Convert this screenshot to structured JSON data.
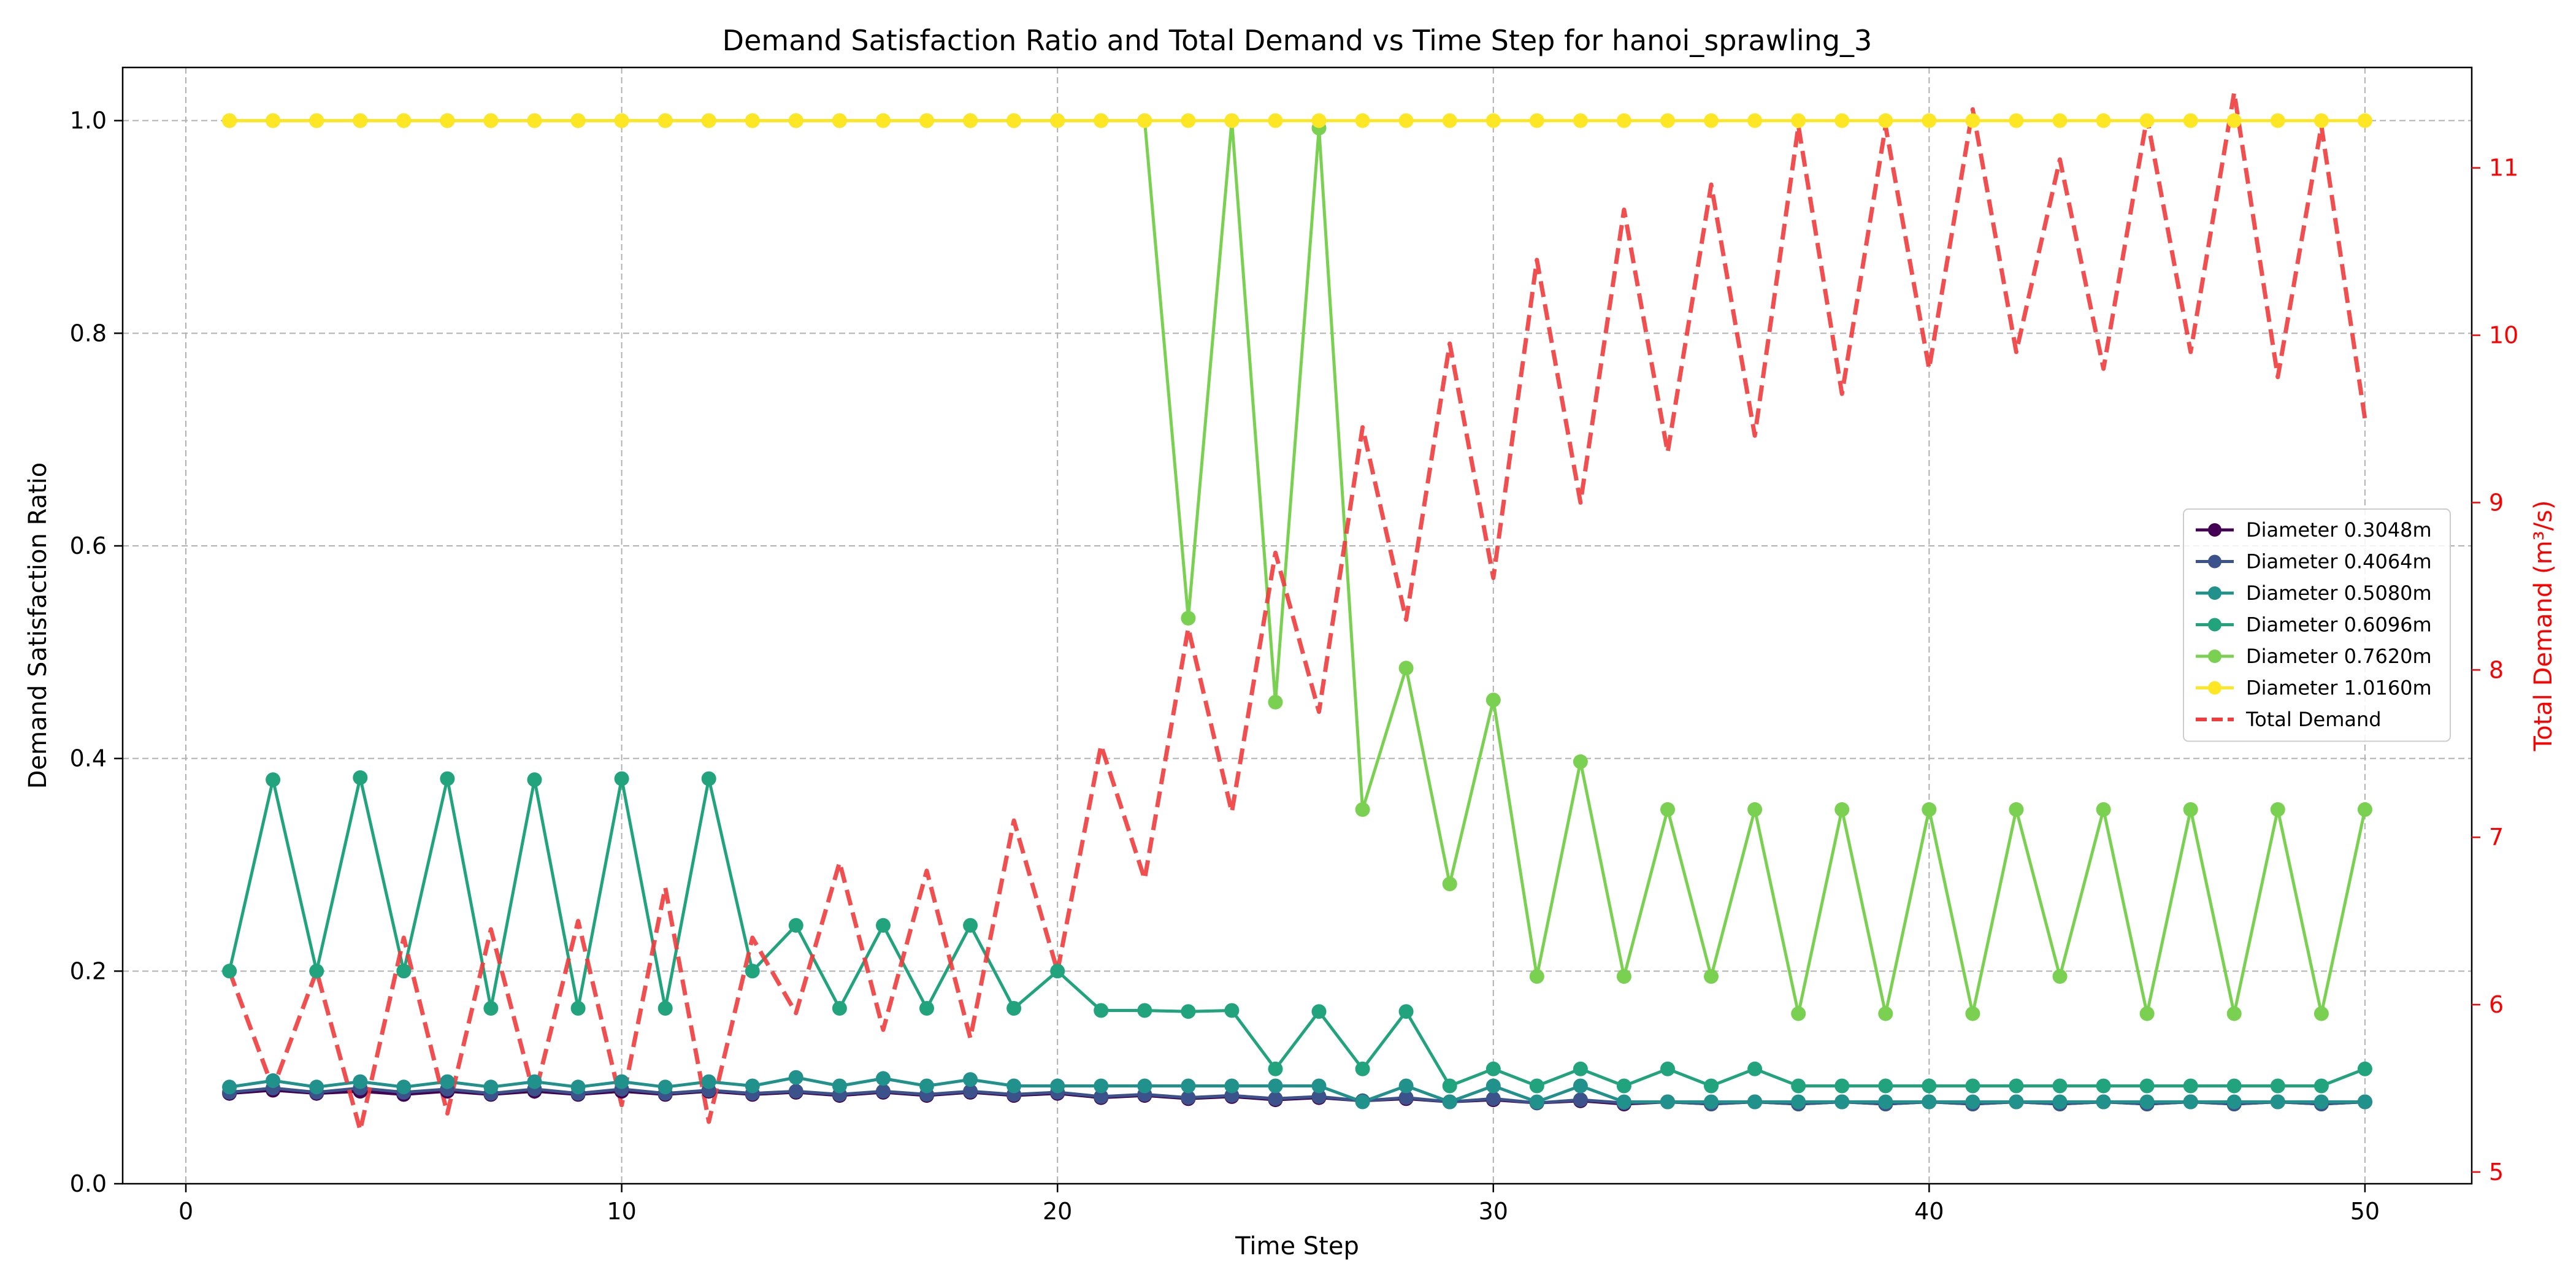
{
  "chart_data": {
    "type": "line",
    "title": "Demand Satisfaction Ratio and Total Demand vs Time Step for hanoi_sprawling_3",
    "xlabel": "Time Step",
    "ylabel": "Demand Satisfaction Ratio",
    "y2label": "Total Demand (m³/s)",
    "xlim": [
      -1.45,
      52.45
    ],
    "ylim": [
      0,
      1.05
    ],
    "y2lim": [
      4.93,
      11.6
    ],
    "xticks": [
      0,
      10,
      20,
      30,
      40,
      50
    ],
    "yticks": [
      0.0,
      0.2,
      0.4,
      0.6,
      0.8,
      1.0
    ],
    "y2ticks": [
      5,
      6,
      7,
      8,
      9,
      10,
      11
    ],
    "grid": true,
    "legend_position": "center-right",
    "x": [
      1,
      2,
      3,
      4,
      5,
      6,
      7,
      8,
      9,
      10,
      11,
      12,
      13,
      14,
      15,
      16,
      17,
      18,
      19,
      20,
      21,
      22,
      23,
      24,
      25,
      26,
      27,
      28,
      29,
      30,
      31,
      32,
      33,
      34,
      35,
      36,
      37,
      38,
      39,
      40,
      41,
      42,
      43,
      44,
      45,
      46,
      47,
      48,
      49,
      50
    ],
    "series": [
      {
        "name": "Diameter 0.3048m",
        "color": "#440154",
        "axis": "left",
        "values": [
          0.085,
          0.088,
          0.085,
          0.087,
          0.084,
          0.087,
          0.084,
          0.087,
          0.084,
          0.087,
          0.084,
          0.087,
          0.084,
          0.086,
          0.083,
          0.086,
          0.083,
          0.086,
          0.083,
          0.085,
          0.081,
          0.083,
          0.08,
          0.082,
          0.079,
          0.081,
          0.078,
          0.08,
          0.077,
          0.079,
          0.076,
          0.078,
          0.075,
          0.077,
          0.075,
          0.077,
          0.075,
          0.077,
          0.075,
          0.077,
          0.075,
          0.077,
          0.075,
          0.077,
          0.075,
          0.077,
          0.075,
          0.077,
          0.075,
          0.077
        ]
      },
      {
        "name": "Diameter 0.4064m",
        "color": "#3b528b",
        "axis": "left",
        "values": [
          0.086,
          0.09,
          0.086,
          0.09,
          0.086,
          0.089,
          0.085,
          0.089,
          0.085,
          0.089,
          0.085,
          0.088,
          0.085,
          0.087,
          0.084,
          0.087,
          0.084,
          0.087,
          0.084,
          0.086,
          0.082,
          0.084,
          0.081,
          0.083,
          0.08,
          0.082,
          0.078,
          0.081,
          0.077,
          0.08,
          0.076,
          0.079,
          0.076,
          0.077,
          0.075,
          0.077,
          0.075,
          0.077,
          0.075,
          0.077,
          0.075,
          0.077,
          0.075,
          0.077,
          0.075,
          0.077,
          0.075,
          0.077,
          0.075,
          0.077
        ]
      },
      {
        "name": "Diameter 0.5080m",
        "color": "#21918c",
        "axis": "left",
        "values": [
          0.091,
          0.097,
          0.091,
          0.096,
          0.091,
          0.096,
          0.091,
          0.096,
          0.091,
          0.096,
          0.091,
          0.096,
          0.092,
          0.1,
          0.092,
          0.099,
          0.092,
          0.098,
          0.092,
          0.092,
          0.092,
          0.092,
          0.092,
          0.092,
          0.092,
          0.092,
          0.077,
          0.092,
          0.077,
          0.092,
          0.077,
          0.092,
          0.077,
          0.077,
          0.077,
          0.077,
          0.077,
          0.077,
          0.077,
          0.077,
          0.077,
          0.077,
          0.077,
          0.077,
          0.077,
          0.077,
          0.077,
          0.077,
          0.077,
          0.077
        ]
      },
      {
        "name": "Diameter 0.6096m",
        "color": "#21a37e",
        "axis": "left",
        "values": [
          0.2,
          0.38,
          0.2,
          0.382,
          0.2,
          0.381,
          0.165,
          0.38,
          0.165,
          0.381,
          0.165,
          0.381,
          0.2,
          0.243,
          0.165,
          0.243,
          0.165,
          0.243,
          0.165,
          0.2,
          0.163,
          0.163,
          0.162,
          0.163,
          0.108,
          0.162,
          0.108,
          0.162,
          0.092,
          0.108,
          0.092,
          0.108,
          0.092,
          0.108,
          0.092,
          0.108,
          0.092,
          0.092,
          0.092,
          0.092,
          0.092,
          0.092,
          0.092,
          0.092,
          0.092,
          0.092,
          0.092,
          0.092,
          0.092,
          0.108
        ]
      },
      {
        "name": "Diameter 0.7620m",
        "color": "#7ad151",
        "axis": "left",
        "values": [
          1.0,
          1.0,
          1.0,
          1.0,
          1.0,
          1.0,
          1.0,
          1.0,
          1.0,
          1.0,
          1.0,
          1.0,
          1.0,
          1.0,
          1.0,
          1.0,
          1.0,
          1.0,
          1.0,
          1.0,
          1.0,
          1.0,
          0.532,
          1.0,
          0.453,
          0.993,
          0.352,
          0.485,
          0.282,
          0.455,
          0.195,
          0.397,
          0.195,
          0.352,
          0.195,
          0.352,
          0.16,
          0.352,
          0.16,
          0.352,
          0.16,
          0.352,
          0.195,
          0.352,
          0.16,
          0.352,
          0.16,
          0.352,
          0.16,
          0.352
        ]
      },
      {
        "name": "Diameter 1.0160m",
        "color": "#fde725",
        "axis": "left",
        "values": [
          1.0,
          1.0,
          1.0,
          1.0,
          1.0,
          1.0,
          1.0,
          1.0,
          1.0,
          1.0,
          1.0,
          1.0,
          1.0,
          1.0,
          1.0,
          1.0,
          1.0,
          1.0,
          1.0,
          1.0,
          1.0,
          1.0,
          1.0,
          1.0,
          1.0,
          1.0,
          1.0,
          1.0,
          1.0,
          1.0,
          1.0,
          1.0,
          1.0,
          1.0,
          1.0,
          1.0,
          1.0,
          1.0,
          1.0,
          1.0,
          1.0,
          1.0,
          1.0,
          1.0,
          1.0,
          1.0,
          1.0,
          1.0,
          1.0,
          1.0
        ]
      },
      {
        "name": "Total Demand",
        "color": "#f03c3c",
        "axis": "right",
        "dashed": true,
        "values": [
          6.2,
          5.5,
          6.2,
          5.25,
          6.4,
          5.35,
          6.45,
          5.45,
          6.5,
          5.4,
          6.7,
          5.3,
          6.4,
          5.95,
          6.85,
          5.85,
          6.8,
          5.8,
          7.1,
          6.2,
          7.55,
          6.75,
          8.25,
          7.15,
          8.7,
          7.75,
          9.45,
          8.3,
          9.95,
          8.55,
          10.45,
          9.0,
          10.75,
          9.3,
          10.9,
          9.4,
          11.25,
          9.65,
          11.25,
          9.8,
          11.35,
          9.9,
          11.05,
          9.8,
          11.3,
          9.9,
          11.45,
          9.75,
          11.25,
          9.5
        ]
      }
    ]
  }
}
